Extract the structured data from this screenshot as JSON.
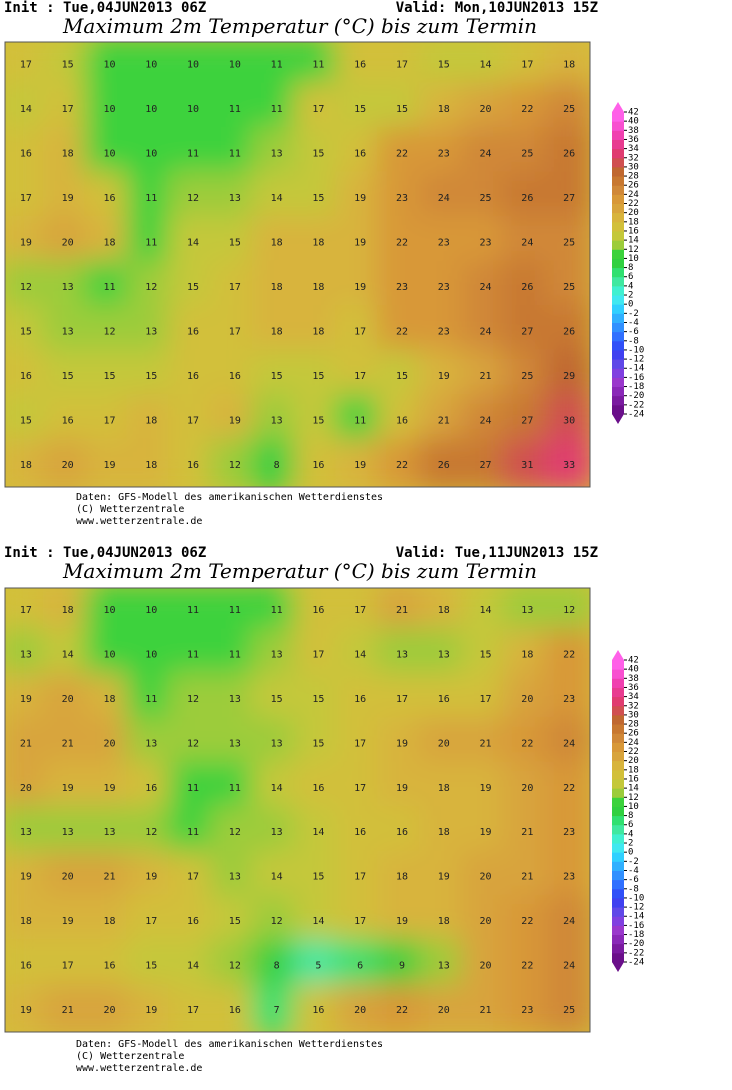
{
  "panels": [
    {
      "init": "Init : Tue,04JUN2013 06Z",
      "valid": "Valid: Mon,10JUN2013 15Z",
      "title": "Maximum 2m Temperatur (°C) bis zum Termin",
      "grid": [
        [
          17,
          15,
          10,
          10,
          10,
          10,
          11,
          11,
          16,
          17,
          15,
          14,
          17,
          18
        ],
        [
          14,
          17,
          10,
          10,
          10,
          11,
          11,
          17,
          15,
          15,
          18,
          20,
          22,
          25
        ],
        [
          16,
          18,
          10,
          10,
          11,
          11,
          13,
          15,
          16,
          22,
          23,
          24,
          25,
          26
        ],
        [
          17,
          19,
          16,
          11,
          12,
          13,
          14,
          15,
          19,
          23,
          24,
          25,
          26,
          27
        ],
        [
          19,
          20,
          18,
          11,
          14,
          15,
          18,
          18,
          19,
          22,
          23,
          23,
          24,
          25
        ],
        [
          12,
          13,
          11,
          12,
          15,
          17,
          18,
          18,
          19,
          23,
          23,
          24,
          26,
          25
        ],
        [
          15,
          13,
          12,
          13,
          16,
          17,
          18,
          18,
          17,
          22,
          23,
          24,
          27,
          26
        ],
        [
          16,
          15,
          15,
          15,
          16,
          16,
          15,
          15,
          17,
          15,
          19,
          21,
          25,
          29
        ],
        [
          15,
          16,
          17,
          18,
          17,
          19,
          13,
          15,
          11,
          16,
          21,
          24,
          27,
          30
        ],
        [
          18,
          20,
          19,
          18,
          16,
          12,
          8,
          16,
          19,
          22,
          26,
          27,
          31,
          33
        ]
      ],
      "footer": [
        "Daten: GFS-Modell des amerikanischen Wetterdienstes",
        "(C) Wetterzentrale",
        "www.wetterzentrale.de"
      ]
    },
    {
      "init": "Init : Tue,04JUN2013 06Z",
      "valid": "Valid: Tue,11JUN2013 15Z",
      "title": "Maximum 2m Temperatur (°C) bis zum Termin",
      "grid": [
        [
          17,
          18,
          10,
          10,
          11,
          11,
          11,
          16,
          17,
          21,
          18,
          14,
          13,
          12
        ],
        [
          13,
          14,
          10,
          10,
          11,
          11,
          13,
          17,
          14,
          13,
          13,
          15,
          18,
          22
        ],
        [
          19,
          20,
          18,
          11,
          12,
          13,
          15,
          15,
          16,
          17,
          16,
          17,
          20,
          23
        ],
        [
          21,
          21,
          20,
          13,
          12,
          13,
          13,
          15,
          17,
          19,
          20,
          21,
          22,
          24
        ],
        [
          20,
          19,
          19,
          16,
          11,
          11,
          14,
          16,
          17,
          19,
          18,
          19,
          20,
          22
        ],
        [
          13,
          13,
          13,
          12,
          11,
          12,
          13,
          14,
          16,
          16,
          18,
          19,
          21,
          23
        ],
        [
          19,
          20,
          21,
          19,
          17,
          13,
          14,
          15,
          17,
          18,
          19,
          20,
          21,
          23
        ],
        [
          18,
          19,
          18,
          17,
          16,
          15,
          12,
          14,
          17,
          19,
          18,
          20,
          22,
          24
        ],
        [
          16,
          17,
          16,
          15,
          14,
          12,
          8,
          5,
          6,
          9,
          13,
          20,
          22,
          24
        ],
        [
          19,
          21,
          20,
          19,
          17,
          16,
          7,
          16,
          20,
          22,
          20,
          21,
          23,
          25
        ]
      ],
      "footer": [
        "Daten: GFS-Modell des amerikanischen Wetterdienstes",
        "(C) Wetterzentrale",
        "www.wetterzentrale.de"
      ]
    }
  ],
  "colorbar": {
    "labels": [
      42,
      40,
      38,
      36,
      34,
      32,
      30,
      28,
      26,
      24,
      22,
      20,
      18,
      16,
      14,
      12,
      10,
      8,
      6,
      4,
      2,
      0,
      -2,
      -4,
      -6,
      -8,
      -10,
      -12,
      -14,
      -16,
      -18,
      -20,
      -22,
      -24
    ],
    "colors": [
      "#6a0f8a",
      "#7a1aa0",
      "#8a28b8",
      "#9a38cc",
      "#8040e0",
      "#6048e8",
      "#4040f0",
      "#3050f8",
      "#3070ff",
      "#3090ff",
      "#30b0ff",
      "#30d0ff",
      "#40e8f0",
      "#40f0d0",
      "#40e8a0",
      "#30e070",
      "#30d040",
      "#3cd23c",
      "#9ccc3a",
      "#c4c83a",
      "#d2c03a",
      "#d8b43c",
      "#d8a43c",
      "#d89838",
      "#d08838",
      "#c87830",
      "#c06830",
      "#d05050",
      "#e03c70",
      "#e83c90",
      "#f040b0",
      "#f850d0",
      "#ff60e8"
    ]
  }
}
